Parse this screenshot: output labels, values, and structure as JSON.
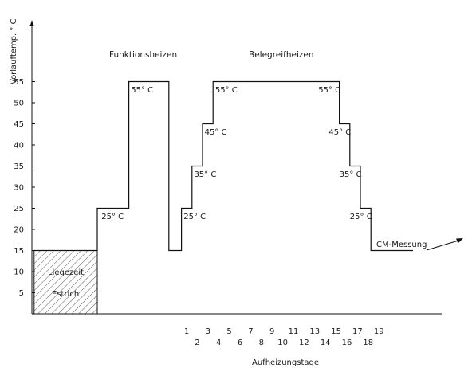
{
  "chart_data": {
    "type": "line",
    "ylabel": "Vorlauftemp. ° C",
    "xlabel": "Aufheizungstage",
    "yticks": [
      5,
      10,
      15,
      20,
      25,
      30,
      35,
      40,
      45,
      50,
      55
    ],
    "ylim": [
      0,
      60
    ],
    "xlim": [
      -3,
      21
    ],
    "days_top": [
      "1",
      "3",
      "5",
      "7",
      "9",
      "11",
      "13",
      "15",
      "17",
      "19"
    ],
    "days_bottom": [
      "2",
      "4",
      "6",
      "8",
      "10",
      "12",
      "14",
      "16",
      "18"
    ],
    "series": [
      {
        "points": [
          [
            -3,
            15
          ],
          [
            0,
            15
          ],
          [
            0,
            25
          ],
          [
            1.5,
            25
          ],
          [
            1.5,
            55
          ],
          [
            3.4,
            55
          ],
          [
            3.4,
            15
          ],
          [
            4,
            15
          ],
          [
            4,
            25
          ],
          [
            4.5,
            25
          ],
          [
            4.5,
            35
          ],
          [
            5,
            35
          ],
          [
            5,
            45
          ],
          [
            5.5,
            45
          ],
          [
            5.5,
            55
          ],
          [
            11.5,
            55
          ],
          [
            11.5,
            45
          ],
          [
            12,
            45
          ],
          [
            12,
            35
          ],
          [
            12.5,
            35
          ],
          [
            12.5,
            25
          ],
          [
            13,
            25
          ],
          [
            13,
            15
          ],
          [
            15,
            15
          ]
        ]
      }
    ],
    "hatched_area": {
      "x": [
        -3,
        0
      ],
      "y": [
        0,
        15
      ],
      "label_line1": "Liegezeit",
      "label_line2": "Estrich"
    },
    "section_labels": [
      "Funktionsheizen",
      "Belegreifheizen"
    ],
    "temperature_labels": [
      {
        "text": "25° C",
        "x": 0.2,
        "y": 23.2
      },
      {
        "text": "55° C",
        "x": 1.6,
        "y": 53.2
      },
      {
        "text": "25° C",
        "x": 4.1,
        "y": 23.2
      },
      {
        "text": "35° C",
        "x": 4.6,
        "y": 33.2
      },
      {
        "text": "45° C",
        "x": 5.1,
        "y": 43.2
      },
      {
        "text": "55° C",
        "x": 5.6,
        "y": 53.2
      },
      {
        "text": "55° C",
        "x": 10.5,
        "y": 53.2
      },
      {
        "text": "45° C",
        "x": 11.0,
        "y": 43.2
      },
      {
        "text": "35° C",
        "x": 11.5,
        "y": 33.2
      },
      {
        "text": "25° C",
        "x": 12.0,
        "y": 23.2
      }
    ],
    "annotation": {
      "text": "CM-Messung"
    },
    "grid": false
  }
}
